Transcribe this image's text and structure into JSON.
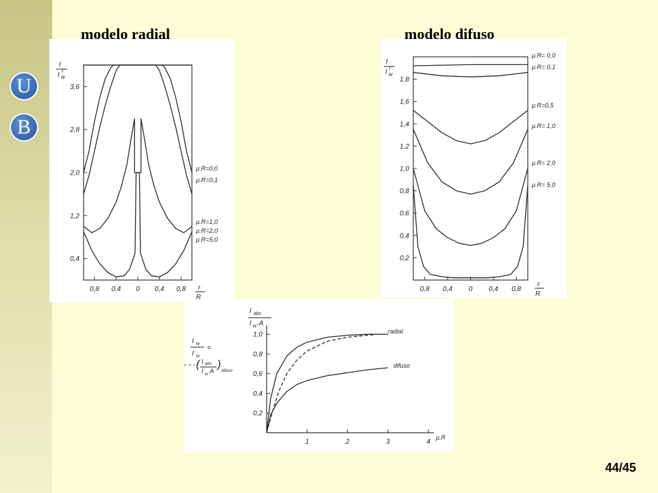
{
  "titles": {
    "left": "modelo radial",
    "right": "modelo difuso"
  },
  "logo": {
    "top_letter": "U",
    "bottom_letter": "B"
  },
  "page_number": "44/45",
  "chart_data": [
    {
      "type": "line",
      "ylabel": "I / I^r_w",
      "xlabel": "r / R",
      "x_ticks": [
        "0,8",
        "0,4",
        "0",
        "0,4",
        "0,8"
      ],
      "y_ticks": [
        "0,4",
        "1,2",
        "2,0",
        "2,8",
        "3,6"
      ],
      "ylim": [
        0,
        4.0
      ],
      "series": [
        {
          "name": "μ.R=0,0",
          "x": [
            -1,
            0,
            1
          ],
          "y": [
            4.0,
            4.0,
            4.0
          ]
        },
        {
          "name": "μ.R=0,1",
          "x": [
            -1,
            -0.9,
            -0.8,
            -0.7,
            -0.6,
            -0.5,
            -0.45,
            0.45,
            0.5,
            0.6,
            0.7,
            0.8,
            0.9,
            1
          ],
          "y": [
            2.0,
            2.4,
            2.95,
            3.4,
            3.75,
            3.95,
            4.0,
            4.0,
            3.95,
            3.75,
            3.4,
            2.95,
            2.4,
            2.0
          ]
        },
        {
          "name": "μ.R=1,0",
          "x": [
            -1,
            -0.9,
            -0.8,
            -0.7,
            -0.6,
            -0.5,
            -0.4,
            -0.33,
            0.33,
            0.4,
            0.5,
            0.6,
            0.7,
            0.8,
            0.9,
            1
          ],
          "y": [
            1.6,
            1.95,
            2.4,
            2.85,
            3.25,
            3.6,
            3.9,
            4.0,
            4.0,
            3.9,
            3.6,
            3.25,
            2.85,
            2.4,
            1.95,
            1.6
          ]
        },
        {
          "name": "μ.R=2,0",
          "x": [
            -1,
            -0.85,
            -0.7,
            -0.55,
            -0.4,
            -0.3,
            -0.2,
            -0.12,
            -0.06,
            -0.06,
            0.06,
            0.06,
            0.12,
            0.2,
            0.3,
            0.4,
            0.55,
            0.7,
            0.85,
            1
          ],
          "y": [
            1.0,
            0.88,
            0.96,
            1.15,
            1.45,
            1.75,
            2.15,
            2.65,
            3.0,
            2.0,
            2.0,
            3.0,
            2.65,
            2.15,
            1.75,
            1.45,
            1.15,
            0.96,
            0.88,
            1.0
          ]
        },
        {
          "name": "μ.R=5,0",
          "x": [
            -1,
            -0.85,
            -0.7,
            -0.55,
            -0.4,
            -0.25,
            -0.15,
            -0.05,
            -0.03,
            -0.03,
            0.03,
            0.03,
            0.05,
            0.15,
            0.25,
            0.4,
            0.55,
            0.7,
            0.85,
            1
          ],
          "y": [
            0.9,
            0.55,
            0.3,
            0.14,
            0.06,
            0.08,
            0.2,
            0.5,
            2.0,
            2.0,
            2.0,
            2.0,
            0.5,
            0.2,
            0.08,
            0.06,
            0.14,
            0.3,
            0.55,
            0.9
          ]
        }
      ]
    },
    {
      "type": "line",
      "ylabel": "I / I^r_w",
      "xlabel": "r / R",
      "x_ticks": [
        "0,8",
        "0,4",
        "0",
        "0,4",
        "0,8"
      ],
      "y_ticks": [
        "0,2",
        "0,4",
        "0,6",
        "0,8",
        "1,0",
        "1,2",
        "1,4",
        "1,6",
        "1,8"
      ],
      "ylim": [
        0,
        2.0
      ],
      "series": [
        {
          "name": "μ.R= 0,0",
          "x": [
            -1,
            0,
            1
          ],
          "y": [
            1.92,
            1.93,
            1.93
          ]
        },
        {
          "name": "μ.R= 0,1",
          "x": [
            -1,
            -0.5,
            0,
            0.5,
            1
          ],
          "y": [
            1.86,
            1.83,
            1.82,
            1.83,
            1.86
          ]
        },
        {
          "name": "μ.R=0,5",
          "x": [
            -1,
            -0.75,
            -0.5,
            -0.25,
            0,
            0.25,
            0.5,
            0.75,
            1
          ],
          "y": [
            1.52,
            1.42,
            1.32,
            1.25,
            1.22,
            1.25,
            1.32,
            1.42,
            1.52
          ]
        },
        {
          "name": "μ.R= 1,0",
          "x": [
            -1,
            -0.75,
            -0.5,
            -0.25,
            0,
            0.25,
            0.5,
            0.75,
            1
          ],
          "y": [
            1.35,
            1.05,
            0.88,
            0.8,
            0.77,
            0.8,
            0.88,
            1.05,
            1.35
          ]
        },
        {
          "name": "μ.R= 2,0",
          "x": [
            -1,
            -0.8,
            -0.6,
            -0.4,
            -0.2,
            0,
            0.2,
            0.4,
            0.6,
            0.8,
            1
          ],
          "y": [
            1.0,
            0.62,
            0.46,
            0.38,
            0.33,
            0.31,
            0.33,
            0.38,
            0.46,
            0.62,
            1.0
          ]
        },
        {
          "name": "μ.R= 5,0",
          "x": [
            -1,
            -0.92,
            -0.82,
            -0.7,
            -0.5,
            -0.3,
            0,
            0.3,
            0.5,
            0.7,
            0.82,
            0.92,
            1
          ],
          "y": [
            0.85,
            0.3,
            0.12,
            0.05,
            0.03,
            0.02,
            0.02,
            0.02,
            0.03,
            0.05,
            0.12,
            0.3,
            0.85
          ]
        }
      ]
    },
    {
      "type": "line",
      "ylabel": "I_abs / I_w.A",
      "xlabel": "μ.R",
      "x_ticks": [
        "1",
        "2",
        "3",
        "4"
      ],
      "y_ticks": [
        "0,2",
        "0,4",
        "0,6",
        "0,8",
        "1,0"
      ],
      "xlim": [
        0,
        4
      ],
      "ylim": [
        0,
        1.05
      ],
      "side_note": "(I_abs / I_w A) difuso",
      "series": [
        {
          "name": "radial",
          "x": [
            0,
            0.1,
            0.25,
            0.5,
            0.75,
            1,
            1.5,
            2,
            2.5,
            3
          ],
          "y": [
            0,
            0.35,
            0.6,
            0.78,
            0.87,
            0.92,
            0.97,
            0.99,
            1.0,
            1.0
          ]
        },
        {
          "name": "dashed",
          "x": [
            0,
            0.15,
            0.3,
            0.5,
            0.75,
            1,
            1.5,
            2,
            2.5,
            2.75
          ],
          "y": [
            0,
            0.22,
            0.42,
            0.6,
            0.74,
            0.83,
            0.93,
            0.97,
            0.99,
            1.0
          ]
        },
        {
          "name": "difuso",
          "x": [
            0,
            0.1,
            0.25,
            0.5,
            0.75,
            1,
            1.5,
            2,
            2.5,
            3
          ],
          "y": [
            0,
            0.18,
            0.3,
            0.42,
            0.49,
            0.53,
            0.58,
            0.61,
            0.64,
            0.66
          ]
        }
      ]
    }
  ]
}
